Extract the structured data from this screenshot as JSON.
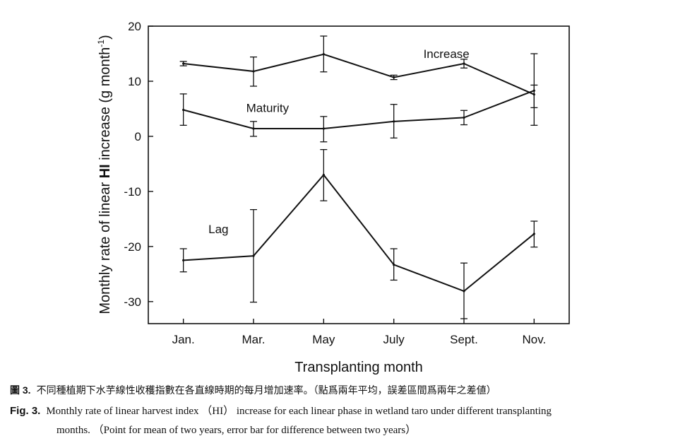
{
  "chart_data": {
    "type": "line",
    "categories": [
      "Jan.",
      "Mar.",
      "May",
      "July",
      "Sept.",
      "Nov."
    ],
    "xlabel": "Transplanting month",
    "ylabel_pre": "Monthly  rate of linear ",
    "ylabel_bold": "HI",
    "ylabel_post": " increase (g month",
    "ylabel_sup": "-1",
    "ylabel_end": ")",
    "ylim": [
      -34,
      20
    ],
    "yticks": [
      20,
      10,
      0,
      -10,
      -20,
      -30
    ],
    "ytick_labels": [
      "20",
      "10",
      "0",
      "-10",
      "-20",
      "-30"
    ],
    "grid": false,
    "series": [
      {
        "name": "Increase",
        "values": [
          13.2,
          11.8,
          14.9,
          10.7,
          13.2,
          7.6
        ],
        "err_low": [
          12.8,
          9.1,
          11.7,
          10.3,
          12.4,
          5.2
        ],
        "err_high": [
          13.6,
          14.4,
          18.2,
          11.1,
          14.0,
          15.0
        ]
      },
      {
        "name": "Maturity",
        "values": [
          4.8,
          1.4,
          1.4,
          2.7,
          3.4,
          8.3
        ],
        "err_low": [
          2.0,
          0.0,
          -1.0,
          -0.3,
          2.1,
          2.0
        ],
        "err_high": [
          7.7,
          2.7,
          3.6,
          5.8,
          4.7,
          9.3
        ]
      },
      {
        "name": "Lag",
        "values": [
          -22.5,
          -21.7,
          -7.0,
          -23.3,
          -28.1,
          -17.7
        ],
        "err_low": [
          -24.6,
          -30.1,
          -11.7,
          -26.1,
          -33.1,
          -20.1
        ],
        "err_high": [
          -20.4,
          -13.3,
          -2.4,
          -20.4,
          -23.0,
          -15.4
        ]
      }
    ]
  },
  "caption": {
    "zh_label": "圖 3.",
    "zh_text": "不同種植期下水芋線性收穫指數在各直線時期的每月增加速率。（點爲兩年平均，誤差區間爲兩年之差値）",
    "en_label": "Fig. 3.",
    "en_line1": "Monthly rate of linear harvest index （HI） increase for each linear phase in wetland taro under different transplanting",
    "en_line2": "months. （Point for mean of two years, error bar for difference between two years）"
  }
}
